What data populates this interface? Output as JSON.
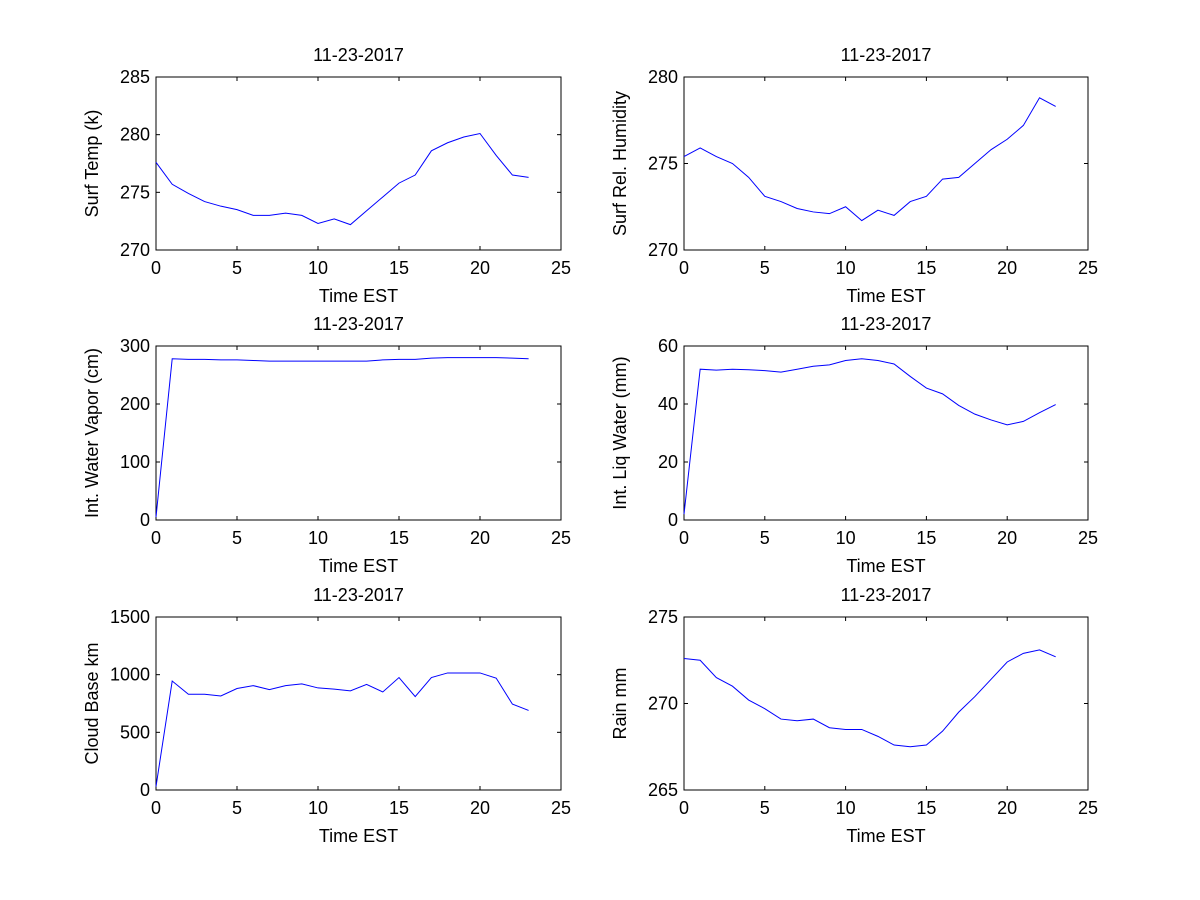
{
  "chart_data": [
    {
      "type": "line",
      "title": "11-23-2017",
      "xlabel": "Time EST",
      "ylabel": "Surf Temp (k)",
      "xlim": [
        0,
        25
      ],
      "ylim": [
        270,
        285
      ],
      "xticks": [
        0,
        5,
        10,
        15,
        20,
        25
      ],
      "yticks": [
        270,
        275,
        280,
        285
      ],
      "x": [
        0,
        1,
        2,
        3,
        4,
        5,
        6,
        7,
        8,
        9,
        10,
        11,
        12,
        13,
        14,
        15,
        16,
        17,
        18,
        19,
        20,
        21,
        22,
        23
      ],
      "values": [
        277.6,
        275.7,
        274.9,
        274.2,
        273.8,
        273.5,
        273.0,
        273.0,
        273.2,
        273.0,
        272.3,
        272.7,
        272.2,
        273.4,
        274.6,
        275.8,
        276.5,
        278.6,
        279.3,
        279.8,
        280.1,
        278.2,
        276.5,
        276.3
      ],
      "color": "#0000ff"
    },
    {
      "type": "line",
      "title": "11-23-2017",
      "xlabel": "Time EST",
      "ylabel": "Surf Rel. Humidity",
      "xlim": [
        0,
        25
      ],
      "ylim": [
        270,
        280
      ],
      "xticks": [
        0,
        5,
        10,
        15,
        20,
        25
      ],
      "yticks": [
        270,
        275,
        280
      ],
      "x": [
        0,
        1,
        2,
        3,
        4,
        5,
        6,
        7,
        8,
        9,
        10,
        11,
        12,
        13,
        14,
        15,
        16,
        17,
        18,
        19,
        20,
        21,
        22,
        23
      ],
      "values": [
        275.4,
        275.9,
        275.4,
        275.0,
        274.2,
        273.1,
        272.8,
        272.4,
        272.2,
        272.1,
        272.5,
        271.7,
        272.3,
        272.0,
        272.8,
        273.1,
        274.1,
        274.2,
        275.0,
        275.8,
        276.4,
        277.2,
        278.8,
        278.3
      ],
      "color": "#0000ff"
    },
    {
      "type": "line",
      "title": "11-23-2017",
      "xlabel": "Time EST",
      "ylabel": "Int. Water Vapor (cm)",
      "xlim": [
        0,
        25
      ],
      "ylim": [
        0,
        300
      ],
      "xticks": [
        0,
        5,
        10,
        15,
        20,
        25
      ],
      "yticks": [
        0,
        100,
        200,
        300
      ],
      "x": [
        0,
        1,
        2,
        3,
        4,
        5,
        6,
        7,
        8,
        9,
        10,
        11,
        12,
        13,
        14,
        15,
        16,
        17,
        18,
        19,
        20,
        21,
        22,
        23
      ],
      "values": [
        5,
        278,
        277,
        277,
        276,
        276,
        275,
        274,
        274,
        274,
        274,
        274,
        274,
        274,
        276,
        277,
        277,
        279,
        280,
        280,
        280,
        280,
        279,
        278
      ],
      "color": "#0000ff"
    },
    {
      "type": "line",
      "title": "11-23-2017",
      "xlabel": "Time EST",
      "ylabel": "Int. Liq Water (mm)",
      "xlim": [
        0,
        25
      ],
      "ylim": [
        0,
        60
      ],
      "xticks": [
        0,
        5,
        10,
        15,
        20,
        25
      ],
      "yticks": [
        0,
        20,
        40,
        60
      ],
      "x": [
        0,
        1,
        2,
        3,
        4,
        5,
        6,
        7,
        8,
        9,
        10,
        11,
        12,
        13,
        14,
        15,
        16,
        17,
        18,
        19,
        20,
        21,
        22,
        23
      ],
      "values": [
        2,
        52,
        51.7,
        52,
        51.8,
        51.5,
        51,
        52,
        53,
        53.5,
        55,
        55.6,
        55,
        53.8,
        49.5,
        45.5,
        43.5,
        39.5,
        36.5,
        34.5,
        32.8,
        34,
        37,
        39.8
      ],
      "color": "#0000ff"
    },
    {
      "type": "line",
      "title": "11-23-2017",
      "xlabel": "Time EST",
      "ylabel": "Cloud Base km",
      "xlim": [
        0,
        25
      ],
      "ylim": [
        0,
        1500
      ],
      "xticks": [
        0,
        5,
        10,
        15,
        20,
        25
      ],
      "yticks": [
        0,
        500,
        1000,
        1500
      ],
      "x": [
        0,
        1,
        2,
        3,
        4,
        5,
        6,
        7,
        8,
        9,
        10,
        11,
        12,
        13,
        14,
        15,
        16,
        17,
        18,
        19,
        20,
        21,
        22,
        23
      ],
      "values": [
        30,
        945,
        830,
        830,
        815,
        880,
        905,
        870,
        905,
        920,
        885,
        875,
        860,
        915,
        850,
        975,
        810,
        975,
        1015,
        1015,
        1015,
        970,
        745,
        690
      ],
      "color": "#0000ff"
    },
    {
      "type": "line",
      "title": "11-23-2017",
      "xlabel": "Time EST",
      "ylabel": "Rain mm",
      "xlim": [
        0,
        25
      ],
      "ylim": [
        265,
        275
      ],
      "xticks": [
        0,
        5,
        10,
        15,
        20,
        25
      ],
      "yticks": [
        265,
        270,
        275
      ],
      "x": [
        0,
        1,
        2,
        3,
        4,
        5,
        6,
        7,
        8,
        9,
        10,
        11,
        12,
        13,
        14,
        15,
        16,
        17,
        18,
        19,
        20,
        21,
        22,
        23
      ],
      "values": [
        272.6,
        272.5,
        271.5,
        271.0,
        270.2,
        269.7,
        269.1,
        269.0,
        269.1,
        268.6,
        268.5,
        268.5,
        268.1,
        267.6,
        267.5,
        267.6,
        268.4,
        269.5,
        270.4,
        271.4,
        272.4,
        272.9,
        273.1,
        272.7
      ],
      "color": "#0000ff"
    }
  ]
}
